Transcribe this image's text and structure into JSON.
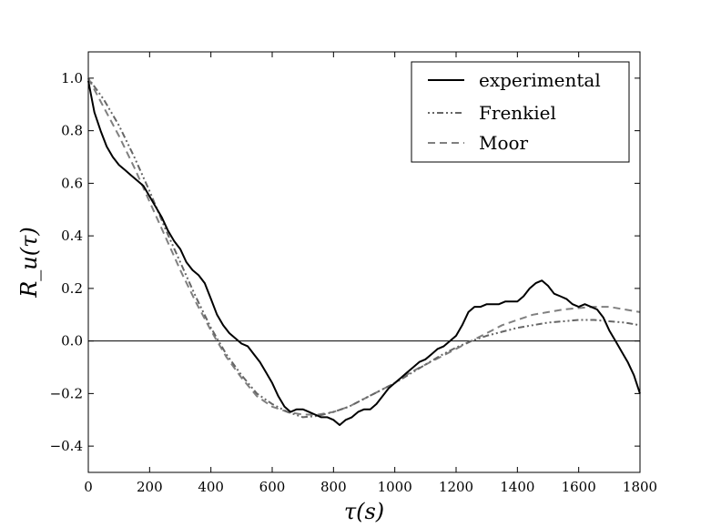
{
  "chart_data": {
    "type": "line",
    "xlabel": "τ(s)",
    "ylabel": "R_u(τ)",
    "xlim": [
      0,
      1800
    ],
    "ylim": [
      -0.5,
      1.1
    ],
    "xticks": [
      0,
      200,
      400,
      600,
      800,
      1000,
      1200,
      1400,
      1600,
      1800
    ],
    "yticks": [
      -0.4,
      -0.2,
      0.0,
      0.2,
      0.4,
      0.6,
      0.8,
      1.0
    ],
    "ytick_labels": [
      "−0.4",
      "−0.2",
      "0.0",
      "0.2",
      "0.4",
      "0.6",
      "0.8",
      "1.0"
    ],
    "zero_line": true,
    "grid": false,
    "legend_position": "top-right",
    "series": [
      {
        "name": "experimental",
        "style": "solid",
        "color": "#000000",
        "x": [
          0,
          20,
          40,
          60,
          80,
          100,
          120,
          140,
          160,
          180,
          200,
          220,
          240,
          260,
          280,
          300,
          320,
          340,
          360,
          380,
          400,
          420,
          440,
          460,
          480,
          500,
          520,
          540,
          560,
          580,
          600,
          620,
          640,
          660,
          680,
          700,
          720,
          740,
          760,
          780,
          800,
          820,
          840,
          860,
          880,
          900,
          920,
          940,
          960,
          980,
          1000,
          1020,
          1040,
          1060,
          1080,
          1100,
          1120,
          1140,
          1160,
          1180,
          1200,
          1220,
          1240,
          1260,
          1280,
          1300,
          1320,
          1340,
          1360,
          1380,
          1400,
          1420,
          1440,
          1460,
          1480,
          1500,
          1520,
          1540,
          1560,
          1580,
          1600,
          1620,
          1640,
          1660,
          1680,
          1700,
          1720,
          1740,
          1760,
          1780,
          1800
        ],
        "values": [
          0.99,
          0.87,
          0.8,
          0.74,
          0.7,
          0.67,
          0.65,
          0.63,
          0.61,
          0.59,
          0.55,
          0.51,
          0.47,
          0.42,
          0.38,
          0.35,
          0.3,
          0.27,
          0.25,
          0.22,
          0.16,
          0.1,
          0.06,
          0.03,
          0.01,
          -0.01,
          -0.02,
          -0.05,
          -0.08,
          -0.12,
          -0.16,
          -0.21,
          -0.25,
          -0.27,
          -0.26,
          -0.26,
          -0.27,
          -0.28,
          -0.29,
          -0.29,
          -0.3,
          -0.32,
          -0.3,
          -0.29,
          -0.27,
          -0.26,
          -0.26,
          -0.24,
          -0.21,
          -0.18,
          -0.16,
          -0.14,
          -0.12,
          -0.1,
          -0.08,
          -0.07,
          -0.05,
          -0.03,
          -0.02,
          0.0,
          0.02,
          0.06,
          0.11,
          0.13,
          0.13,
          0.14,
          0.14,
          0.14,
          0.15,
          0.15,
          0.15,
          0.17,
          0.2,
          0.22,
          0.23,
          0.21,
          0.18,
          0.17,
          0.16,
          0.14,
          0.13,
          0.14,
          0.13,
          0.12,
          0.09,
          0.04,
          0.0,
          -0.04,
          -0.08,
          -0.13,
          -0.2
        ]
      },
      {
        "name": "Frenkiel",
        "style": "dashdot",
        "color": "#666666",
        "x": [
          0,
          50,
          100,
          150,
          200,
          250,
          300,
          350,
          400,
          450,
          500,
          550,
          600,
          650,
          700,
          750,
          800,
          850,
          900,
          950,
          1000,
          1050,
          1100,
          1150,
          1200,
          1250,
          1300,
          1350,
          1400,
          1450,
          1500,
          1550,
          1600,
          1650,
          1700,
          1750,
          1800
        ],
        "values": [
          1.0,
          0.92,
          0.82,
          0.7,
          0.57,
          0.43,
          0.3,
          0.17,
          0.05,
          -0.05,
          -0.13,
          -0.2,
          -0.24,
          -0.27,
          -0.29,
          -0.285,
          -0.27,
          -0.25,
          -0.22,
          -0.19,
          -0.16,
          -0.125,
          -0.09,
          -0.055,
          -0.025,
          0.0,
          0.02,
          0.035,
          0.05,
          0.06,
          0.07,
          0.075,
          0.08,
          0.08,
          0.075,
          0.07,
          0.06
        ]
      },
      {
        "name": "Moor",
        "style": "dashed",
        "color": "#808080",
        "x": [
          0,
          50,
          100,
          150,
          200,
          250,
          300,
          350,
          400,
          450,
          500,
          550,
          600,
          650,
          700,
          750,
          800,
          850,
          900,
          950,
          1000,
          1050,
          1100,
          1150,
          1200,
          1250,
          1300,
          1350,
          1400,
          1450,
          1500,
          1550,
          1600,
          1650,
          1700,
          1750,
          1800
        ],
        "values": [
          1.0,
          0.89,
          0.78,
          0.66,
          0.53,
          0.4,
          0.27,
          0.15,
          0.04,
          -0.06,
          -0.14,
          -0.21,
          -0.25,
          -0.27,
          -0.28,
          -0.28,
          -0.27,
          -0.25,
          -0.22,
          -0.19,
          -0.16,
          -0.12,
          -0.09,
          -0.06,
          -0.03,
          0.0,
          0.03,
          0.06,
          0.08,
          0.1,
          0.11,
          0.12,
          0.125,
          0.13,
          0.13,
          0.12,
          0.11
        ]
      }
    ]
  }
}
